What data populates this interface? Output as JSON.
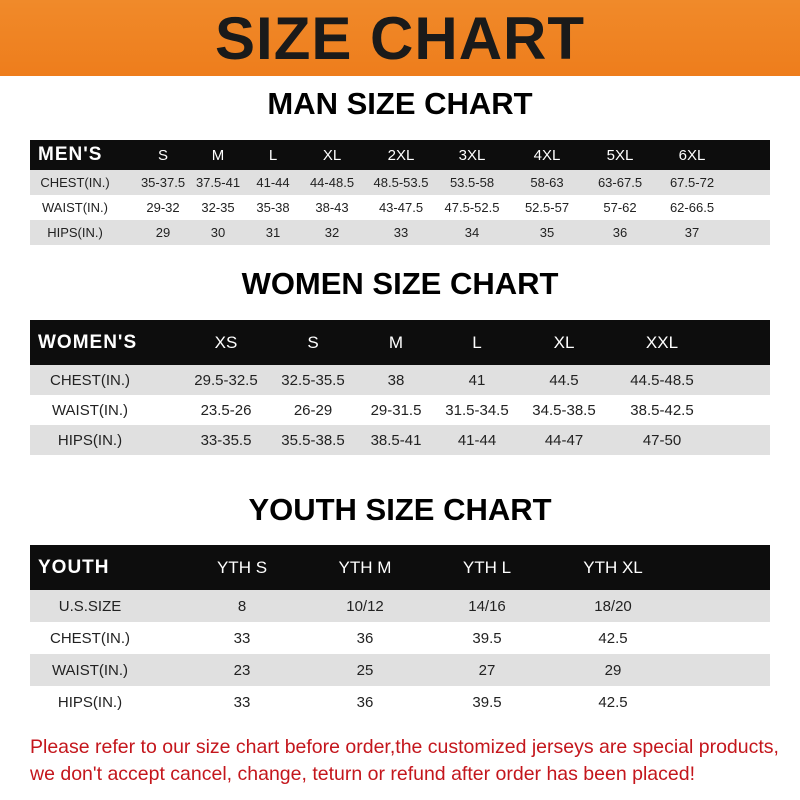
{
  "header": {
    "title": "SIZE CHART"
  },
  "tables": [
    {
      "title": "MAN SIZE CHART",
      "columns": [
        "MEN'S",
        "S",
        "M",
        "L",
        "XL",
        "2XL",
        "3XL",
        "4XL",
        "5XL",
        "6XL"
      ],
      "rows": [
        [
          "CHEST(IN.)",
          "35-37.5",
          "37.5-41",
          "41-44",
          "44-48.5",
          "48.5-53.5",
          "53.5-58",
          "58-63",
          "63-67.5",
          "67.5-72"
        ],
        [
          "WAIST(IN.)",
          "29-32",
          "32-35",
          "35-38",
          "38-43",
          "43-47.5",
          "47.5-52.5",
          "52.5-57",
          "57-62",
          "62-66.5"
        ],
        [
          "HIPS(IN.)",
          "29",
          "30",
          "31",
          "32",
          "33",
          "34",
          "35",
          "36",
          "37"
        ]
      ]
    },
    {
      "title": "WOMEN SIZE CHART",
      "columns": [
        "WOMEN'S",
        "XS",
        "S",
        "M",
        "L",
        "XL",
        "XXL"
      ],
      "rows": [
        [
          "CHEST(IN.)",
          "29.5-32.5",
          "32.5-35.5",
          "38",
          "41",
          "44.5",
          "44.5-48.5"
        ],
        [
          "WAIST(IN.)",
          "23.5-26",
          "26-29",
          "29-31.5",
          "31.5-34.5",
          "34.5-38.5",
          "38.5-42.5"
        ],
        [
          "HIPS(IN.)",
          "33-35.5",
          "35.5-38.5",
          "38.5-41",
          "41-44",
          "44-47",
          "47-50"
        ]
      ]
    },
    {
      "title": "YOUTH SIZE CHART",
      "columns": [
        "YOUTH",
        "YTH S",
        "YTH M",
        "YTH L",
        "YTH XL"
      ],
      "rows": [
        [
          "U.S.SIZE",
          "8",
          "10/12",
          "14/16",
          "18/20"
        ],
        [
          "CHEST(IN.)",
          "33",
          "36",
          "39.5",
          "42.5"
        ],
        [
          "WAIST(IN.)",
          "23",
          "25",
          "27",
          "29"
        ],
        [
          "HIPS(IN.)",
          "33",
          "36",
          "39.5",
          "42.5"
        ]
      ]
    }
  ],
  "footer": {
    "note_line1": "Please refer to our size chart before order,the customized jerseys are special products,",
    "note_line2": "we don't accept cancel, change, teturn or refund after order has been placed!"
  },
  "colors": {
    "banner": "#ee7d1c",
    "header_row": "#0d0d0d",
    "note": "#c4161c"
  }
}
